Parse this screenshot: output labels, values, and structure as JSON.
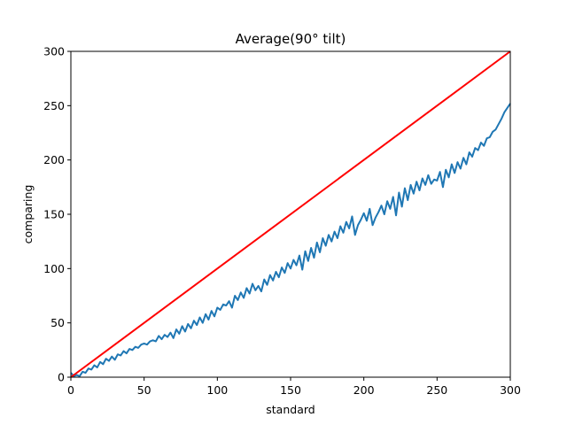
{
  "chart_data": {
    "type": "line",
    "title": "Average(90° tilt)",
    "xlabel": "standard",
    "ylabel": "comparing",
    "xlim": [
      0,
      300
    ],
    "ylim": [
      0,
      300
    ],
    "x_ticks": [
      0,
      50,
      100,
      150,
      200,
      250,
      300
    ],
    "y_ticks": [
      0,
      50,
      100,
      150,
      200,
      250,
      300
    ],
    "grid": false,
    "series": [
      {
        "color": "#1f77b4",
        "x": [
          0,
          2,
          4,
          6,
          8,
          10,
          12,
          14,
          16,
          18,
          20,
          22,
          24,
          26,
          28,
          30,
          32,
          34,
          36,
          38,
          40,
          42,
          44,
          46,
          48,
          50,
          52,
          54,
          56,
          58,
          60,
          62,
          64,
          66,
          68,
          70,
          72,
          74,
          76,
          78,
          80,
          82,
          84,
          86,
          88,
          90,
          92,
          94,
          96,
          98,
          100,
          102,
          104,
          106,
          108,
          110,
          112,
          114,
          116,
          118,
          120,
          122,
          124,
          126,
          128,
          130,
          132,
          134,
          136,
          138,
          140,
          142,
          144,
          146,
          148,
          150,
          152,
          154,
          156,
          158,
          160,
          162,
          164,
          166,
          168,
          170,
          172,
          174,
          176,
          178,
          180,
          182,
          184,
          186,
          188,
          190,
          192,
          194,
          196,
          198,
          200,
          202,
          204,
          206,
          208,
          210,
          212,
          214,
          216,
          218,
          220,
          222,
          224,
          226,
          228,
          230,
          232,
          234,
          236,
          238,
          240,
          242,
          244,
          246,
          248,
          250,
          252,
          254,
          256,
          258,
          260,
          262,
          264,
          266,
          268,
          270,
          272,
          274,
          276,
          278,
          280,
          282,
          284,
          286,
          288,
          290,
          292,
          294,
          296,
          298,
          300
        ],
        "y": [
          4,
          1,
          2,
          1,
          5,
          4,
          8,
          7,
          11,
          9,
          14,
          12,
          17,
          15,
          19,
          16,
          21,
          20,
          24,
          22,
          26,
          25,
          28,
          27,
          30,
          31,
          30,
          33,
          34,
          33,
          38,
          35,
          39,
          37,
          41,
          36,
          44,
          40,
          47,
          42,
          49,
          45,
          52,
          48,
          55,
          50,
          58,
          53,
          61,
          56,
          64,
          62,
          67,
          66,
          70,
          64,
          75,
          71,
          78,
          73,
          82,
          77,
          86,
          80,
          84,
          79,
          90,
          85,
          94,
          89,
          97,
          92,
          101,
          96,
          105,
          100,
          108,
          103,
          112,
          99,
          116,
          107,
          119,
          110,
          124,
          115,
          128,
          121,
          131,
          125,
          134,
          128,
          139,
          133,
          143,
          137,
          148,
          131,
          140,
          145,
          151,
          144,
          155,
          140,
          147,
          152,
          158,
          150,
          162,
          155,
          166,
          149,
          170,
          157,
          174,
          163,
          177,
          169,
          180,
          172,
          183,
          177,
          186,
          178,
          182,
          181,
          189,
          175,
          191,
          184,
          196,
          188,
          198,
          192,
          202,
          196,
          207,
          203,
          211,
          209,
          216,
          213,
          220,
          221,
          226,
          228,
          233,
          238,
          244,
          248,
          252
        ],
        "noisy_segments_note": ""
      },
      {
        "color": "#ff0000",
        "x": [
          0,
          300
        ],
        "y": [
          0,
          300
        ]
      }
    ]
  }
}
